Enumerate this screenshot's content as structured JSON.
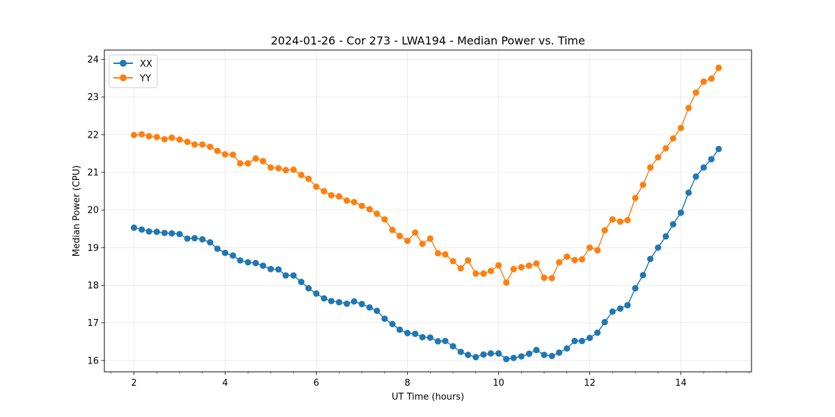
{
  "chart_data": {
    "type": "line",
    "title": "2024-01-26 - Cor 273 - LWA194 - Median Power vs. Time",
    "xlabel": "UT Time (hours)",
    "ylabel": "Median Power (CPU)",
    "xlim": [
      1.35,
      15.55
    ],
    "ylim": [
      15.7,
      24.25
    ],
    "xticks": [
      2,
      4,
      6,
      8,
      10,
      12,
      14
    ],
    "yticks": [
      16,
      17,
      18,
      19,
      20,
      21,
      22,
      23,
      24
    ],
    "grid": true,
    "legend_position": "top-left",
    "x": [
      2.0,
      2.17,
      2.33,
      2.5,
      2.67,
      2.83,
      3.0,
      3.17,
      3.33,
      3.5,
      3.67,
      3.83,
      4.0,
      4.17,
      4.33,
      4.5,
      4.67,
      4.83,
      5.0,
      5.17,
      5.33,
      5.5,
      5.67,
      5.83,
      6.0,
      6.17,
      6.33,
      6.5,
      6.67,
      6.83,
      7.0,
      7.17,
      7.33,
      7.5,
      7.67,
      7.83,
      8.0,
      8.17,
      8.33,
      8.5,
      8.67,
      8.83,
      9.0,
      9.17,
      9.33,
      9.5,
      9.67,
      9.83,
      10.0,
      10.17,
      10.33,
      10.5,
      10.67,
      10.83,
      11.0,
      11.17,
      11.33,
      11.5,
      11.67,
      11.83,
      12.0,
      12.17,
      12.33,
      12.5,
      12.67,
      12.83,
      13.0,
      13.17,
      13.33,
      13.5,
      13.67,
      13.83,
      14.0,
      14.17,
      14.33,
      14.5,
      14.67,
      14.83
    ],
    "series": [
      {
        "name": "XX",
        "color": "#1f77b4",
        "values": [
          19.53,
          19.48,
          19.43,
          19.42,
          19.39,
          19.38,
          19.36,
          19.24,
          19.25,
          19.22,
          19.14,
          18.97,
          18.86,
          18.79,
          18.66,
          18.61,
          18.59,
          18.52,
          18.43,
          18.42,
          18.26,
          18.26,
          18.09,
          17.92,
          17.78,
          17.65,
          17.58,
          17.55,
          17.51,
          17.57,
          17.5,
          17.41,
          17.32,
          17.11,
          16.97,
          16.82,
          16.73,
          16.71,
          16.62,
          16.61,
          16.51,
          16.52,
          16.38,
          16.23,
          16.15,
          16.09,
          16.16,
          16.19,
          16.19,
          16.04,
          16.07,
          16.11,
          16.18,
          16.28,
          16.15,
          16.12,
          16.21,
          16.32,
          16.52,
          16.52,
          16.6,
          16.74,
          17.02,
          17.3,
          17.38,
          17.47,
          17.92,
          18.27,
          18.7,
          19.0,
          19.3,
          19.62,
          19.93,
          20.46,
          20.89,
          21.13,
          21.35,
          21.62
        ]
      },
      {
        "name": "YY",
        "color": "#ff7f0e",
        "values": [
          21.99,
          22.01,
          21.96,
          21.94,
          21.88,
          21.92,
          21.87,
          21.81,
          21.74,
          21.74,
          21.68,
          21.57,
          21.48,
          21.47,
          21.24,
          21.24,
          21.37,
          21.3,
          21.13,
          21.11,
          21.06,
          21.07,
          20.93,
          20.83,
          20.62,
          20.5,
          20.39,
          20.36,
          20.25,
          20.21,
          20.11,
          20.02,
          19.9,
          19.75,
          19.47,
          19.31,
          19.18,
          19.4,
          19.1,
          19.24,
          18.85,
          18.82,
          18.64,
          18.45,
          18.66,
          18.31,
          18.31,
          18.38,
          18.53,
          18.07,
          18.43,
          18.48,
          18.52,
          18.58,
          18.2,
          18.19,
          18.61,
          18.76,
          18.67,
          18.69,
          19.0,
          18.93,
          19.46,
          19.75,
          19.69,
          19.73,
          20.32,
          20.67,
          21.13,
          21.4,
          21.64,
          21.9,
          22.18,
          22.71,
          23.12,
          23.41,
          23.49,
          23.78
        ]
      }
    ]
  }
}
